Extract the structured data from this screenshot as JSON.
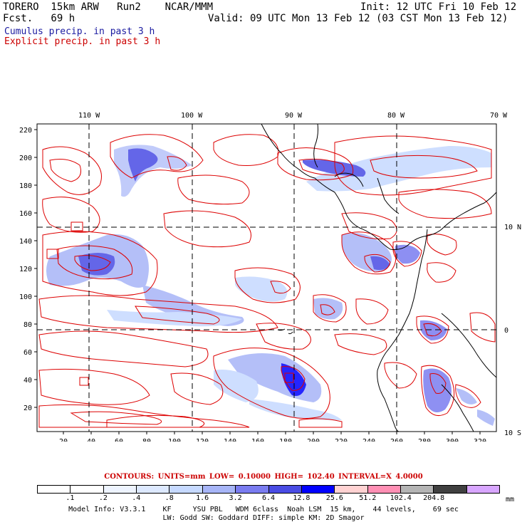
{
  "header": {
    "model_title": "TORERO  15km ARW   Run2    NCAR/MMM",
    "init_text": "Init: 12 UTC Fri 10 Feb 12",
    "forecast_text": "Fcst.   69 h",
    "valid_text": "Valid: 09 UTC Mon 13 Feb 12 (03 CST Mon 13 Feb 12)",
    "field_cumulus": "Cumulus precip. in past 3 h",
    "field_explicit": "Explicit precip. in past 3 h"
  },
  "map": {
    "top_longitude_labels": [
      "110 W",
      "100 W",
      "90 W",
      "80 W",
      "70 W"
    ],
    "right_latitude_labels": [
      "10 N",
      "0",
      "10 S"
    ],
    "left_grid_labels": [
      "220",
      "200",
      "180",
      "160",
      "140",
      "120",
      "100",
      "80",
      "60",
      "40",
      "20"
    ],
    "bottom_grid_labels": [
      "20",
      "40",
      "60",
      "80",
      "100",
      "120",
      "140",
      "160",
      "180",
      "200",
      "220",
      "240",
      "260",
      "280",
      "300",
      "320"
    ],
    "colors": {
      "contour": "#dd0000",
      "coastline": "#000000",
      "graticule": "#000000"
    }
  },
  "legend": {
    "contours_text": "CONTOURS:  UNITS=mm  LOW= 0.10000      HIGH=  102.40      INTERVAL=X  4.0000",
    "colorbar_values": [
      ".1",
      ".2",
      ".4",
      ".8",
      "1.6",
      "3.2",
      "6.4",
      "12.8",
      "25.6",
      "51.2",
      "102.4",
      "204.8"
    ],
    "colorbar_colors": [
      "#ffffff",
      "#ffffff",
      "#eef4ff",
      "#dde9ff",
      "#c6d9ff",
      "#a7b5f7",
      "#7a7cf0",
      "#4a4ce4",
      "#0000ff",
      "#ffd2d2",
      "#ff8fb4",
      "#b4b4b4",
      "#404040",
      "#d8a6ff"
    ],
    "unit": "mm"
  },
  "footer": {
    "model_info_line1": "Model Info: V3.3.1    KF     YSU PBL   WDM 6class  Noah LSM  15 km,    44 levels,    69 sec",
    "model_info_line2": "LW: Godd SW: Goddard DIFF: simple KM: 2D Smagor"
  }
}
